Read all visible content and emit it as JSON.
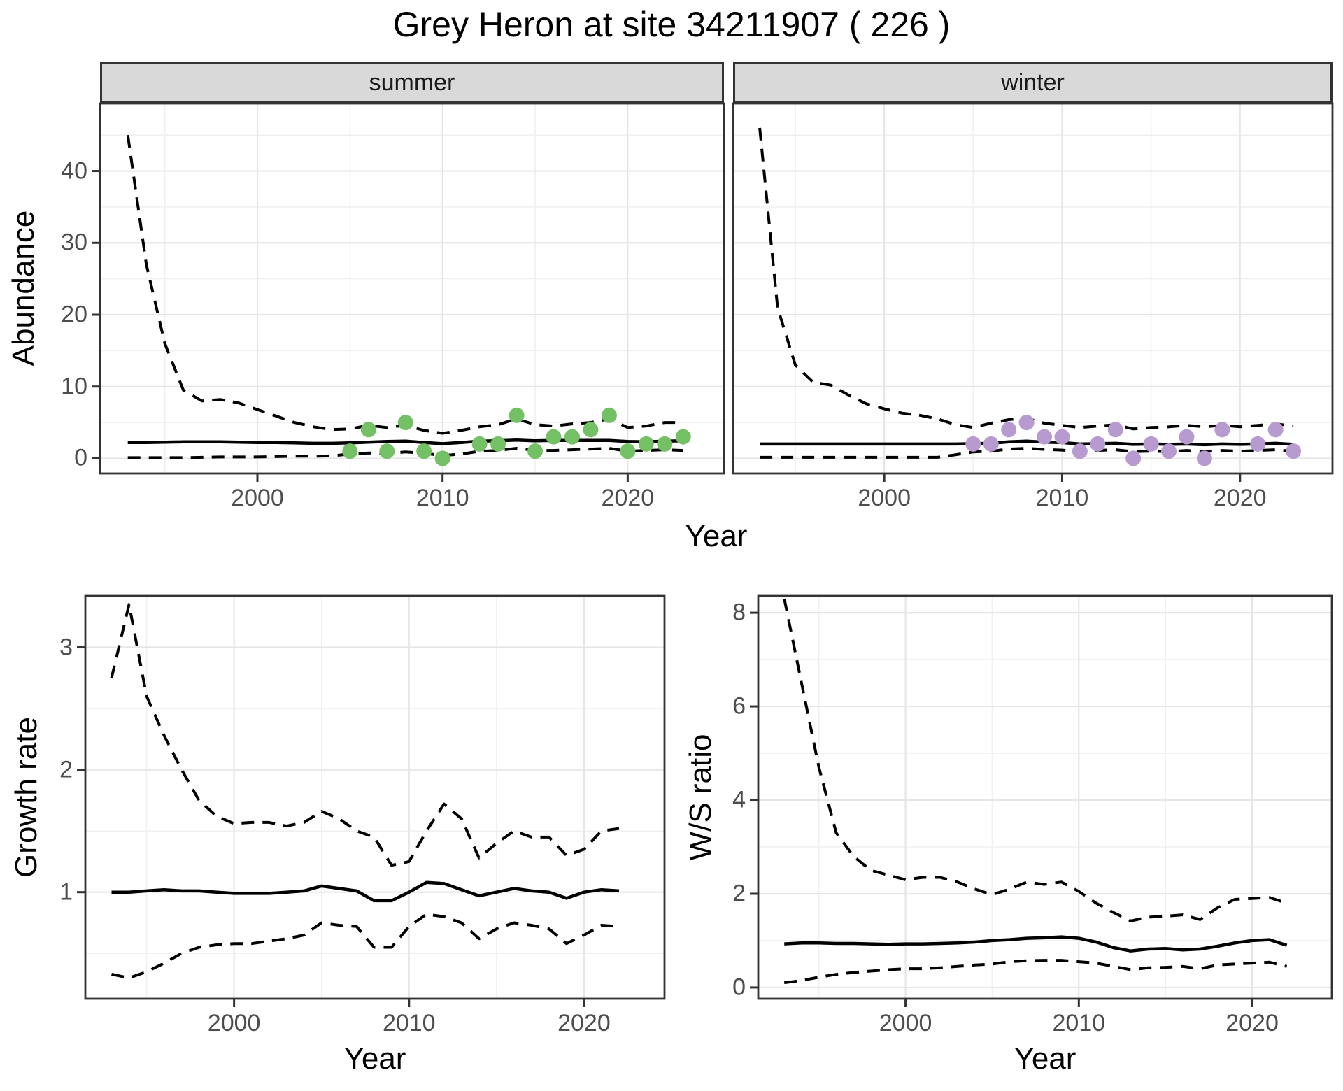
{
  "title": "Grey Heron at site 34211907 ( 226 )",
  "colors": {
    "summer_point": "#74c065",
    "winter_point": "#b79bd0",
    "line": "#000000",
    "strip_bg": "#d9d9d9",
    "panel_border": "#333333",
    "grid_major": "#e6e6e6",
    "grid_minor": "#f0f0f0",
    "tick_text": "#4d4d4d"
  },
  "chart_data": [
    {
      "id": "abundance-summer",
      "type": "line",
      "facet_label": "summer",
      "ylabel": "Abundance",
      "xlabel": "Year",
      "xlim": [
        1991.5,
        2025.2
      ],
      "ylim": [
        -2.1,
        49.4
      ],
      "xticks": [
        2000,
        2010,
        2020
      ],
      "xminor": [
        1995,
        2005,
        2015
      ],
      "yticks": [
        0,
        10,
        20,
        30,
        40
      ],
      "yminor": [
        5,
        15,
        25,
        35,
        45
      ],
      "x": [
        1993,
        1994,
        1995,
        1996,
        1997,
        1998,
        1999,
        2000,
        2001,
        2002,
        2003,
        2004,
        2005,
        2006,
        2007,
        2008,
        2009,
        2010,
        2011,
        2012,
        2013,
        2014,
        2015,
        2016,
        2017,
        2018,
        2019,
        2020,
        2021,
        2022,
        2023
      ],
      "series": [
        {
          "name": "mean",
          "style": "solid",
          "values": [
            2.2,
            2.2,
            2.25,
            2.3,
            2.3,
            2.3,
            2.25,
            2.2,
            2.2,
            2.15,
            2.1,
            2.1,
            2.15,
            2.25,
            2.35,
            2.4,
            2.2,
            2.05,
            2.2,
            2.4,
            2.45,
            2.55,
            2.45,
            2.5,
            2.5,
            2.5,
            2.5,
            2.35,
            2.3,
            2.4,
            2.45
          ]
        },
        {
          "name": "upper_95ci",
          "style": "dashed",
          "values": [
            45,
            27,
            16,
            9.5,
            8.0,
            8.2,
            7.7,
            6.8,
            5.9,
            5.0,
            4.4,
            4.0,
            4.1,
            4.6,
            4.3,
            4.6,
            3.9,
            3.5,
            3.9,
            4.4,
            4.7,
            5.5,
            4.7,
            4.5,
            4.8,
            5.0,
            5.5,
            4.3,
            4.5,
            5.0,
            5.0
          ]
        },
        {
          "name": "lower_95ci",
          "style": "dashed",
          "values": [
            0.1,
            0.1,
            0.1,
            0.1,
            0.15,
            0.2,
            0.2,
            0.2,
            0.25,
            0.3,
            0.3,
            0.35,
            0.6,
            0.75,
            0.65,
            0.9,
            0.7,
            0.4,
            0.6,
            1.0,
            1.1,
            1.4,
            1.1,
            1.1,
            1.2,
            1.3,
            1.4,
            1.0,
            1.1,
            1.2,
            1.1
          ]
        }
      ],
      "points": {
        "name": "observed-counts-summer",
        "color_key": "summer_point",
        "data": [
          [
            2005,
            1
          ],
          [
            2006,
            4
          ],
          [
            2007,
            1
          ],
          [
            2008,
            5
          ],
          [
            2009,
            1
          ],
          [
            2010,
            0
          ],
          [
            2012,
            2
          ],
          [
            2013,
            2
          ],
          [
            2014,
            6
          ],
          [
            2015,
            1
          ],
          [
            2016,
            3
          ],
          [
            2017,
            3
          ],
          [
            2018,
            4
          ],
          [
            2019,
            6
          ],
          [
            2020,
            1
          ],
          [
            2021,
            2
          ],
          [
            2022,
            2
          ],
          [
            2023,
            3
          ]
        ]
      }
    },
    {
      "id": "abundance-winter",
      "type": "line",
      "facet_label": "winter",
      "ylabel": "",
      "xlabel": "",
      "xlim": [
        1991.5,
        2025.2
      ],
      "ylim": [
        -2.1,
        49.4
      ],
      "xticks": [
        2000,
        2010,
        2020
      ],
      "xminor": [
        1995,
        2005,
        2015
      ],
      "yticks": [
        0,
        10,
        20,
        30,
        40
      ],
      "yminor": [
        5,
        15,
        25,
        35,
        45
      ],
      "x": [
        1993,
        1994,
        1995,
        1996,
        1997,
        1998,
        1999,
        2000,
        2001,
        2002,
        2003,
        2004,
        2005,
        2006,
        2007,
        2008,
        2009,
        2010,
        2011,
        2012,
        2013,
        2014,
        2015,
        2016,
        2017,
        2018,
        2019,
        2020,
        2021,
        2022,
        2023
      ],
      "series": [
        {
          "name": "mean",
          "style": "solid",
          "values": [
            2.0,
            2.0,
            2.0,
            2.0,
            2.0,
            2.0,
            2.0,
            2.0,
            2.0,
            2.0,
            2.0,
            2.0,
            2.05,
            2.1,
            2.3,
            2.4,
            2.25,
            2.2,
            2.0,
            2.05,
            2.1,
            1.95,
            2.0,
            1.95,
            2.0,
            1.9,
            2.0,
            1.95,
            2.0,
            2.1,
            1.95
          ]
        },
        {
          "name": "upper_95ci",
          "style": "dashed",
          "values": [
            46,
            21,
            13,
            10.6,
            10.2,
            8.8,
            7.6,
            6.9,
            6.3,
            6.0,
            5.5,
            4.7,
            4.3,
            4.9,
            5.4,
            5.6,
            4.9,
            4.6,
            4.3,
            4.5,
            4.7,
            4.1,
            4.3,
            4.4,
            4.6,
            4.4,
            4.6,
            4.4,
            4.6,
            4.8,
            4.5
          ]
        },
        {
          "name": "lower_95ci",
          "style": "dashed",
          "values": [
            0.15,
            0.15,
            0.15,
            0.15,
            0.15,
            0.15,
            0.15,
            0.15,
            0.15,
            0.15,
            0.15,
            0.5,
            0.9,
            1.0,
            1.3,
            1.4,
            1.25,
            1.15,
            0.95,
            1.1,
            1.2,
            0.95,
            1.0,
            0.95,
            1.1,
            0.95,
            1.1,
            1.0,
            1.1,
            1.2,
            1.0
          ]
        }
      ],
      "points": {
        "name": "observed-counts-winter",
        "color_key": "winter_point",
        "data": [
          [
            2005,
            2
          ],
          [
            2006,
            2
          ],
          [
            2007,
            4
          ],
          [
            2008,
            5
          ],
          [
            2009,
            3
          ],
          [
            2010,
            3
          ],
          [
            2011,
            1
          ],
          [
            2012,
            2
          ],
          [
            2013,
            4
          ],
          [
            2014,
            0
          ],
          [
            2015,
            2
          ],
          [
            2016,
            1
          ],
          [
            2017,
            3
          ],
          [
            2018,
            0
          ],
          [
            2019,
            4
          ],
          [
            2021,
            2
          ],
          [
            2022,
            4
          ],
          [
            2023,
            1
          ]
        ]
      }
    },
    {
      "id": "growth-rate",
      "type": "line",
      "facet_label": "",
      "ylabel": "Growth rate",
      "xlabel": "Year",
      "xlim": [
        1991.5,
        2024.6
      ],
      "ylim": [
        0.13,
        3.42
      ],
      "xticks": [
        2000,
        2010,
        2020
      ],
      "xminor": [
        1995,
        2005,
        2015
      ],
      "yticks": [
        1,
        2,
        3
      ],
      "yminor": [
        0.5,
        1.5,
        2.5
      ],
      "x": [
        1993,
        1994,
        1995,
        1996,
        1997,
        1998,
        1999,
        2000,
        2001,
        2002,
        2003,
        2004,
        2005,
        2006,
        2007,
        2008,
        2009,
        2010,
        2011,
        2012,
        2013,
        2014,
        2015,
        2016,
        2017,
        2018,
        2019,
        2020,
        2021,
        2022
      ],
      "series": [
        {
          "name": "mean",
          "style": "solid",
          "values": [
            1.0,
            1.0,
            1.01,
            1.02,
            1.01,
            1.01,
            1.0,
            0.99,
            0.99,
            0.99,
            1.0,
            1.01,
            1.05,
            1.03,
            1.01,
            0.93,
            0.93,
            1.0,
            1.08,
            1.07,
            1.02,
            0.97,
            1.0,
            1.03,
            1.01,
            1.0,
            0.95,
            1.0,
            1.02,
            1.01
          ]
        },
        {
          "name": "upper_95ci",
          "style": "dashed",
          "values": [
            2.75,
            3.35,
            2.6,
            2.28,
            2.0,
            1.75,
            1.62,
            1.56,
            1.57,
            1.57,
            1.54,
            1.57,
            1.66,
            1.6,
            1.5,
            1.45,
            1.22,
            1.25,
            1.5,
            1.72,
            1.6,
            1.28,
            1.4,
            1.5,
            1.45,
            1.45,
            1.3,
            1.35,
            1.5,
            1.52
          ]
        },
        {
          "name": "lower_95ci",
          "style": "dashed",
          "values": [
            0.33,
            0.3,
            0.35,
            0.42,
            0.5,
            0.55,
            0.57,
            0.58,
            0.58,
            0.6,
            0.62,
            0.65,
            0.75,
            0.73,
            0.72,
            0.55,
            0.55,
            0.72,
            0.82,
            0.8,
            0.75,
            0.62,
            0.7,
            0.75,
            0.73,
            0.7,
            0.58,
            0.65,
            0.73,
            0.72
          ]
        }
      ],
      "points": null
    },
    {
      "id": "ws-ratio",
      "type": "line",
      "facet_label": "",
      "ylabel": "W/S ratio",
      "xlabel": "Year",
      "xlim": [
        1991.5,
        2024.6
      ],
      "ylim": [
        -0.24,
        8.36
      ],
      "xticks": [
        2000,
        2010,
        2020
      ],
      "xminor": [
        1995,
        2005,
        2015
      ],
      "yticks": [
        0,
        2,
        4,
        6,
        8
      ],
      "yminor": [
        1,
        3,
        5,
        7
      ],
      "x": [
        1993,
        1994,
        1995,
        1996,
        1997,
        1998,
        1999,
        2000,
        2001,
        2002,
        2003,
        2004,
        2005,
        2006,
        2007,
        2008,
        2009,
        2010,
        2011,
        2012,
        2013,
        2014,
        2015,
        2016,
        2017,
        2018,
        2019,
        2020,
        2021,
        2022
      ],
      "series": [
        {
          "name": "mean",
          "style": "solid",
          "values": [
            0.93,
            0.95,
            0.95,
            0.94,
            0.94,
            0.93,
            0.92,
            0.93,
            0.93,
            0.94,
            0.95,
            0.97,
            1.0,
            1.02,
            1.05,
            1.06,
            1.08,
            1.05,
            0.97,
            0.85,
            0.78,
            0.82,
            0.83,
            0.8,
            0.82,
            0.88,
            0.95,
            1.0,
            1.02,
            0.9
          ]
        },
        {
          "name": "upper_95ci",
          "style": "dashed",
          "values": [
            8.3,
            6.5,
            4.7,
            3.3,
            2.8,
            2.5,
            2.4,
            2.3,
            2.35,
            2.35,
            2.25,
            2.1,
            1.98,
            2.1,
            2.25,
            2.2,
            2.25,
            2.05,
            1.8,
            1.6,
            1.42,
            1.5,
            1.52,
            1.55,
            1.45,
            1.7,
            1.88,
            1.9,
            1.92,
            1.8
          ]
        },
        {
          "name": "lower_95ci",
          "style": "dashed",
          "values": [
            0.1,
            0.15,
            0.22,
            0.28,
            0.32,
            0.35,
            0.38,
            0.4,
            0.4,
            0.42,
            0.45,
            0.48,
            0.5,
            0.55,
            0.57,
            0.58,
            0.58,
            0.55,
            0.52,
            0.45,
            0.38,
            0.42,
            0.43,
            0.45,
            0.4,
            0.48,
            0.5,
            0.52,
            0.54,
            0.45
          ]
        }
      ],
      "points": null
    }
  ]
}
